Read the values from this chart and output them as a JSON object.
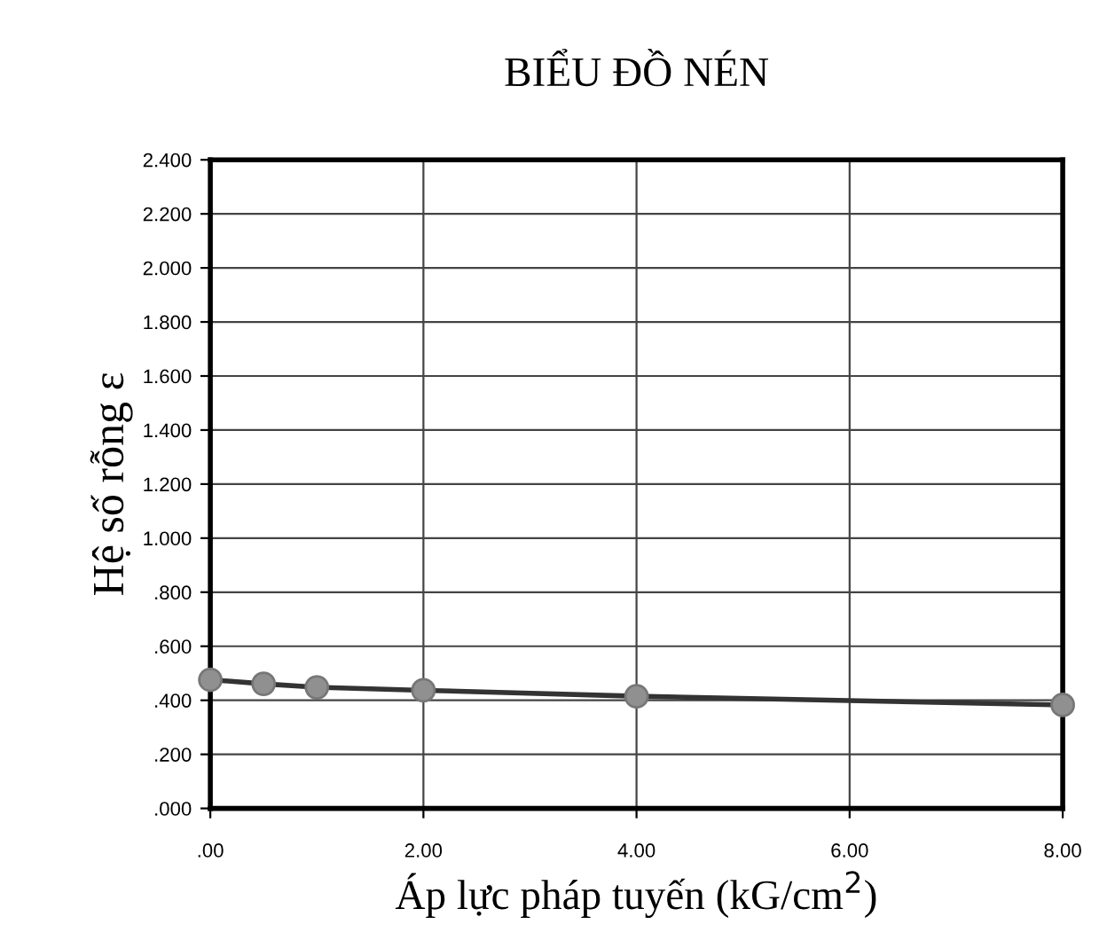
{
  "chart_data": {
    "type": "line",
    "title": "BIỂU ĐỒ NÉN",
    "xlabel": "Áp lực pháp tuyến (kG/cm$^{2}$)",
    "ylabel": "Hệ số rỗng ε",
    "x": [
      0,
      0.5,
      1,
      2,
      4,
      8
    ],
    "series": [
      {
        "color": "#333333",
        "values": [
          0.476,
          0.461,
          0.448,
          0.437,
          0.415,
          0.383
        ]
      }
    ],
    "xlim": [
      0,
      8
    ],
    "ylim": [
      0,
      2.4
    ],
    "xticks": [
      {
        "value": 0,
        "label": ".00"
      },
      {
        "value": 2,
        "label": "2.00"
      },
      {
        "value": 4,
        "label": "4.00"
      },
      {
        "value": 6,
        "label": "6.00"
      },
      {
        "value": 8,
        "label": "8.00"
      }
    ],
    "yticks": [
      {
        "value": 0,
        "label": ".000"
      },
      {
        "value": 0.2,
        "label": ".200"
      },
      {
        "value": 0.4,
        "label": ".400"
      },
      {
        "value": 0.6,
        "label": ".600"
      },
      {
        "value": 0.8,
        "label": ".800"
      },
      {
        "value": 1.0,
        "label": "1.000"
      },
      {
        "value": 1.2,
        "label": "1.200"
      },
      {
        "value": 1.4,
        "label": "1.400"
      },
      {
        "value": 1.6,
        "label": "1.600"
      },
      {
        "value": 1.8,
        "label": "1.800"
      },
      {
        "value": 2.0,
        "label": "2.000"
      },
      {
        "value": 2.2,
        "label": "2.200"
      },
      {
        "value": 2.4,
        "label": "2.400"
      }
    ],
    "grid": true,
    "marker": "circle",
    "line_style": "solid"
  }
}
